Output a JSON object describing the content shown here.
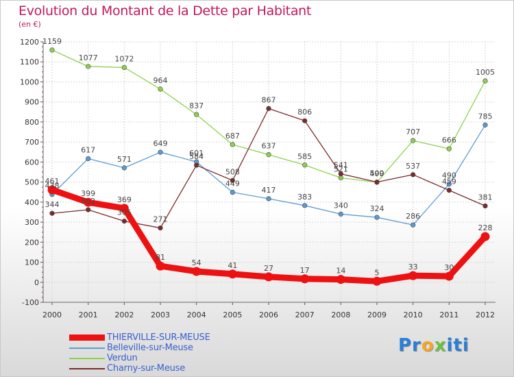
{
  "title": "Evolution du Montant de la Dette par Habitant",
  "subtitle": "(en €)",
  "logo": {
    "part1": "Pr",
    "part2": "o",
    "part3": "x",
    "part4": "iti"
  },
  "chart_data": {
    "type": "line",
    "title": "Evolution du Montant de la Dette par Habitant",
    "subtitle": "(en €)",
    "xlabel": "",
    "ylabel": "",
    "ylim": [
      -100,
      1200
    ],
    "yticks": [
      -100,
      0,
      100,
      200,
      300,
      400,
      500,
      600,
      700,
      800,
      900,
      1000,
      1100,
      1200
    ],
    "grid": true,
    "legend_position": "bottom-left",
    "x": [
      "2000",
      "2001",
      "2002",
      "2003",
      "2004",
      "2005",
      "2006",
      "2007",
      "2008",
      "2009",
      "2010",
      "2011",
      "2012"
    ],
    "series": [
      {
        "name": "Belleville-sur-Meuse",
        "color": "#5b9bd5",
        "values": [
          438,
          617,
          571,
          649,
          601,
          449,
          417,
          383,
          340,
          324,
          286,
          490,
          785
        ]
      },
      {
        "name": "Verdun",
        "color": "#8fd14f",
        "values": [
          1159,
          1077,
          1072,
          964,
          837,
          687,
          637,
          585,
          521,
          499,
          707,
          666,
          1005
        ]
      },
      {
        "name": "Charny-sur-Meuse",
        "color": "#7b2b2b",
        "values": [
          344,
          362,
          305,
          271,
          584,
          508,
          867,
          806,
          541,
          500,
          537,
          459,
          381
        ]
      },
      {
        "name": "THIERVILLE-SUR-MEUSE",
        "color": "#ee1111",
        "values": [
          461,
          399,
          369,
          81,
          54,
          41,
          27,
          17,
          14,
          5,
          33,
          30,
          228
        ]
      }
    ]
  }
}
